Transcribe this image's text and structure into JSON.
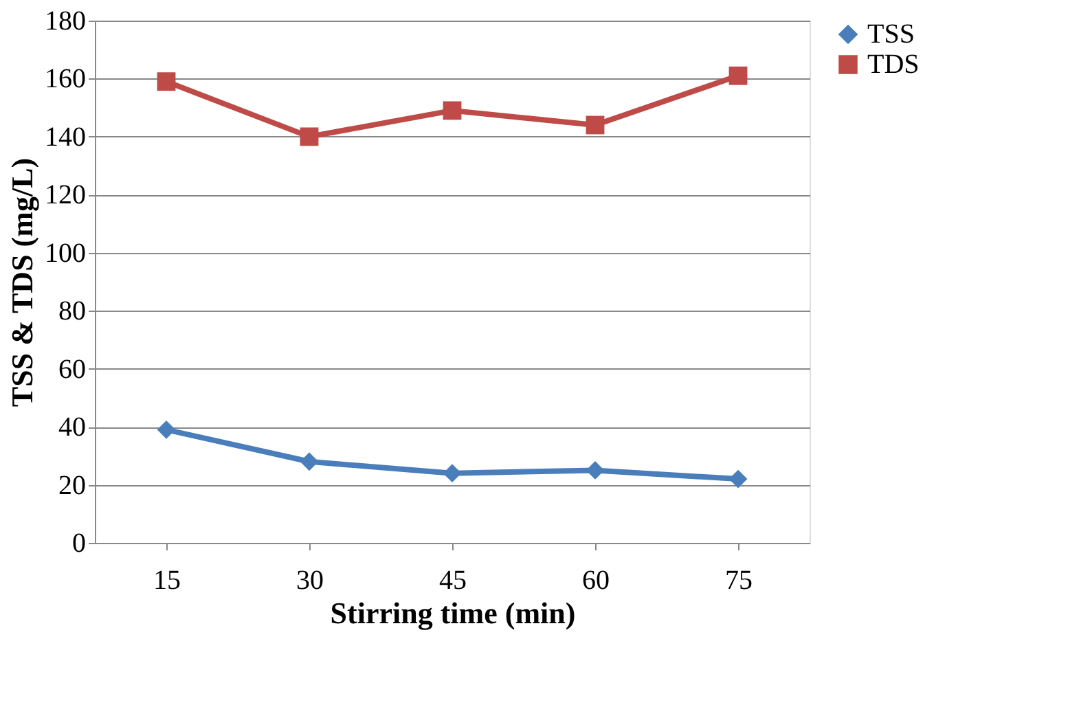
{
  "chart_data": {
    "type": "line",
    "xlabel": "Stirring time (min)",
    "ylabel": "TSS & TDS (mg/L)",
    "categories": [
      "15",
      "30",
      "45",
      "60",
      "75"
    ],
    "series": [
      {
        "name": "TSS",
        "color": "#4a7ebb",
        "marker": "diamond",
        "values": [
          39,
          28,
          24,
          25,
          22
        ]
      },
      {
        "name": "TDS",
        "color": "#be4b48",
        "marker": "square",
        "values": [
          159,
          140,
          149,
          144,
          161
        ]
      }
    ],
    "ylim": [
      0,
      180
    ],
    "yticks": [
      0,
      20,
      40,
      60,
      80,
      100,
      120,
      140,
      160,
      180
    ],
    "grid": "y",
    "legend": "right",
    "line_style": "solid"
  }
}
